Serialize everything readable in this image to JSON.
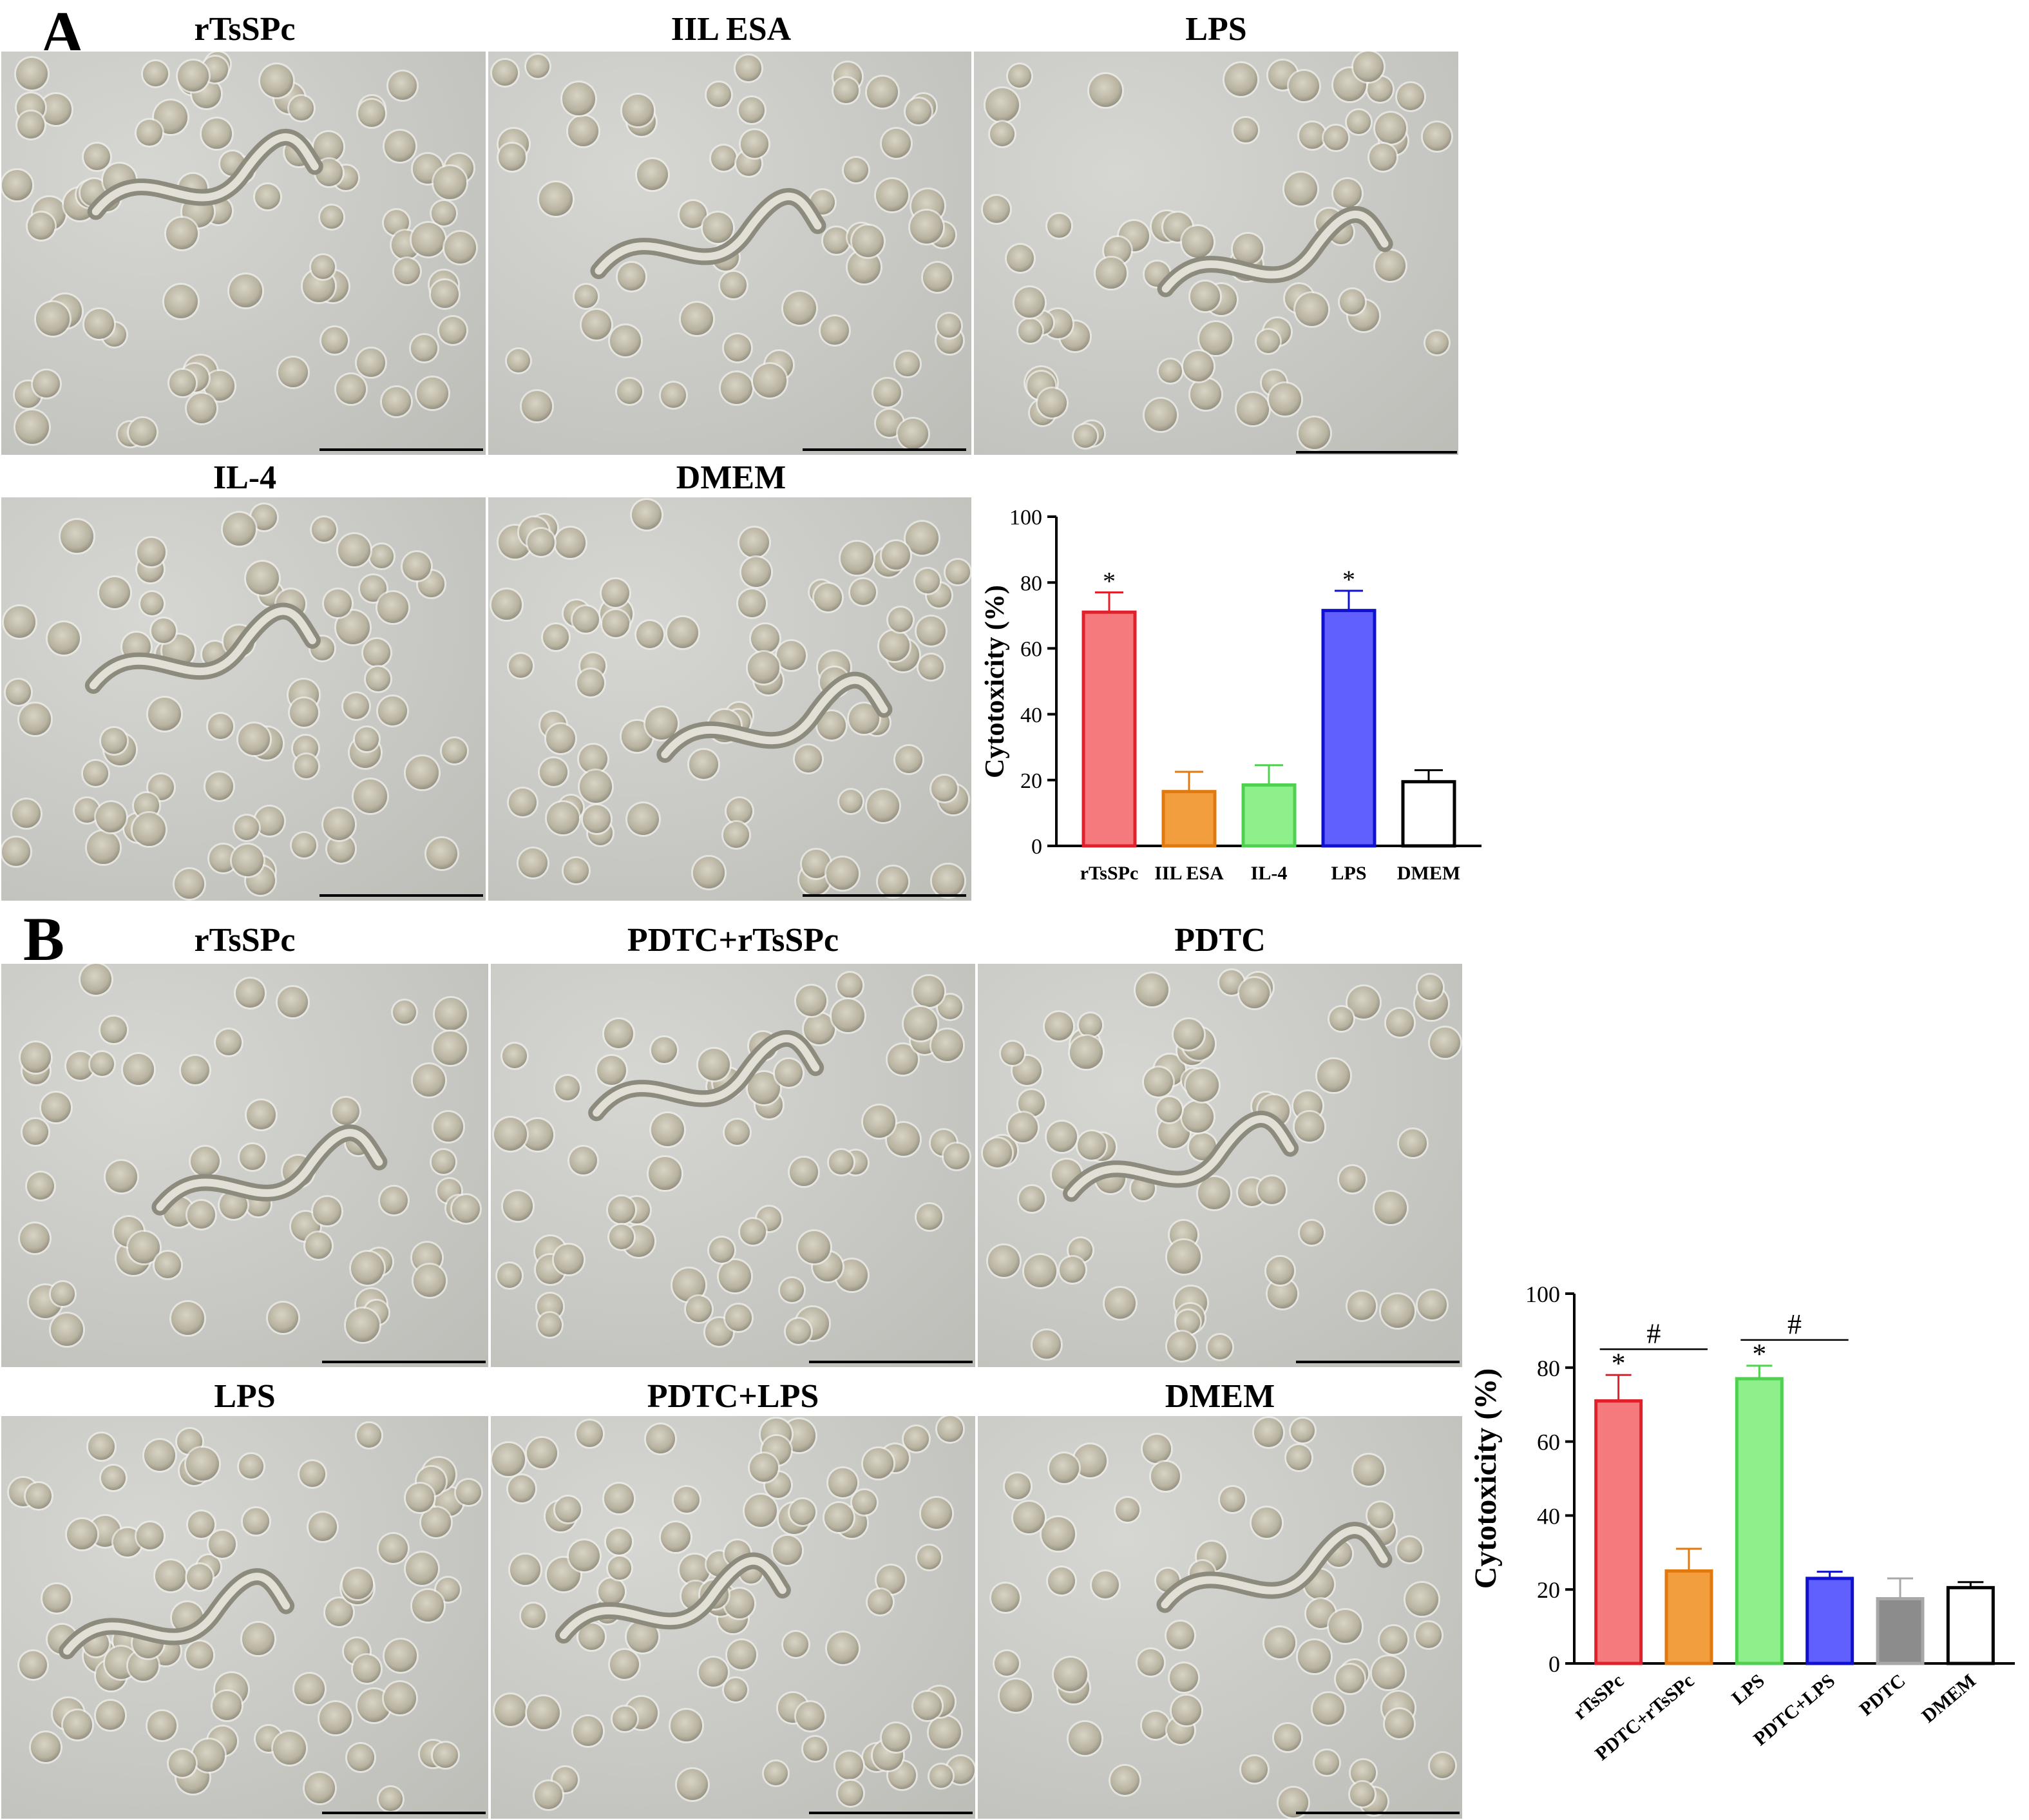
{
  "panels": {
    "A": {
      "letter": "A",
      "images": [
        {
          "title": "rTsSPc"
        },
        {
          "title": "IIL ESA"
        },
        {
          "title": "LPS"
        },
        {
          "title": "IL-4"
        },
        {
          "title": "DMEM"
        }
      ]
    },
    "B": {
      "letter": "B",
      "images": [
        {
          "title": "rTsSPc"
        },
        {
          "title": "PDTC+rTsSPc"
        },
        {
          "title": "PDTC"
        },
        {
          "title": "LPS"
        },
        {
          "title": "PDTC+LPS"
        },
        {
          "title": "DMEM"
        }
      ]
    }
  },
  "chart_data": [
    {
      "type": "bar",
      "categories": [
        "rTsSPc",
        "IIL ESA",
        "IL-4",
        "LPS",
        "DMEM"
      ],
      "values": [
        71,
        16.5,
        18.5,
        71.5,
        19.5
      ],
      "errors": [
        6,
        6,
        6,
        6,
        3.5
      ],
      "significance": [
        "*",
        "",
        "",
        "*",
        ""
      ],
      "bar_fill": [
        "#f47a7e",
        "#f29e3e",
        "#8ef08a",
        "#6060ff",
        "#ffffff"
      ],
      "bar_stroke": [
        "#e0202a",
        "#e07a10",
        "#50d050",
        "#1010d0",
        "#000000"
      ],
      "title": "",
      "xlabel": "",
      "ylabel": "Cytotoxicity (%)",
      "ylim": [
        0,
        100
      ],
      "yticks": [
        "0",
        "20",
        "40",
        "60",
        "80",
        "100"
      ]
    },
    {
      "type": "bar",
      "categories": [
        "rTsSPc",
        "PDTC+rTsSPc",
        "LPS",
        "PDTC+LPS",
        "PDTC",
        "DMEM"
      ],
      "values": [
        71,
        25,
        77,
        23,
        17.5,
        20.5
      ],
      "errors": [
        7,
        6,
        3.5,
        1.8,
        5.5,
        1.5
      ],
      "significance": [
        "*",
        "",
        "*",
        "",
        "",
        ""
      ],
      "bar_fill": [
        "#f47a7e",
        "#f29e3e",
        "#8ef08a",
        "#6060ff",
        "#8c8c8c",
        "#ffffff"
      ],
      "bar_stroke": [
        "#e0202a",
        "#e07a10",
        "#50d050",
        "#1010d0",
        "#a8a8a8",
        "#000000"
      ],
      "brackets": [
        {
          "from": 0,
          "to": 1,
          "label": "#"
        },
        {
          "from": 2,
          "to": 3,
          "label": "#"
        }
      ],
      "title": "",
      "xlabel": "",
      "ylabel": "Cytotoxicity (%)",
      "ylim": [
        0,
        100
      ],
      "yticks": [
        "0",
        "20",
        "40",
        "60",
        "80",
        "100"
      ]
    }
  ]
}
